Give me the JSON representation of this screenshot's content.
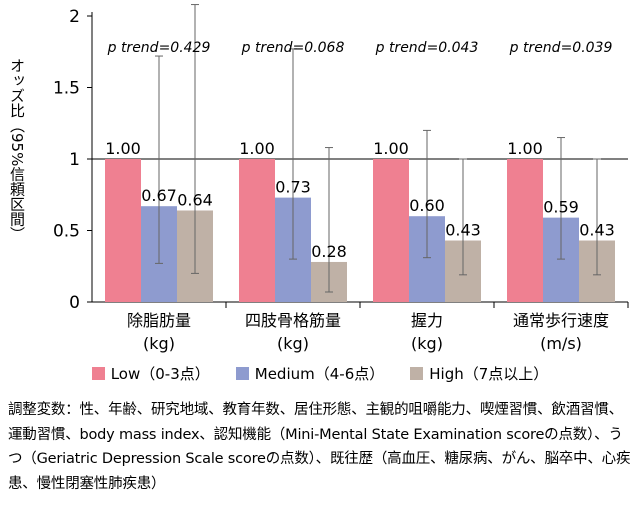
{
  "chart_data": {
    "type": "bar",
    "ylabel": "オッズ比（95%信頼区間）",
    "ylim": [
      0,
      2
    ],
    "yticks": [
      "0",
      "0.5",
      "1",
      "1.5",
      "2"
    ],
    "categories": [
      {
        "name": "除脂肪量",
        "unit": "(kg)"
      },
      {
        "name": "四肢骨格筋量",
        "unit": "(kg)"
      },
      {
        "name": "握力",
        "unit": "(kg)"
      },
      {
        "name": "通常歩行速度",
        "unit": "(m/s)"
      }
    ],
    "trend_labels": [
      "p trend=0.429",
      "p trend=0.068",
      "p trend=0.043",
      "p trend=0.039"
    ],
    "series": [
      {
        "name": "Low（0-3点）",
        "color": "#ef8091",
        "values": [
          1.0,
          1.0,
          1.0,
          1.0
        ],
        "labels": [
          "1.00",
          "1.00",
          "1.00",
          "1.00"
        ],
        "ci": [
          null,
          null,
          null,
          null
        ]
      },
      {
        "name": "Medium（4-6点）",
        "color": "#8e9bcf",
        "values": [
          0.67,
          0.73,
          0.6,
          0.59
        ],
        "labels": [
          "0.67",
          "0.73",
          "0.60",
          "0.59"
        ],
        "ci": [
          [
            0.27,
            1.72
          ],
          [
            0.3,
            1.77
          ],
          [
            0.31,
            1.2
          ],
          [
            0.3,
            1.15
          ]
        ]
      },
      {
        "name": "High（7点以上）",
        "color": "#bfb1a6",
        "values": [
          0.64,
          0.28,
          0.43,
          0.43
        ],
        "labels": [
          "0.64",
          "0.28",
          "0.43",
          "0.43"
        ],
        "ci": [
          [
            0.2,
            2.08
          ],
          [
            0.07,
            1.08
          ],
          [
            0.19,
            1.0
          ],
          [
            0.19,
            1.0
          ]
        ]
      }
    ],
    "reference_line": 1,
    "grid": false
  },
  "footnote": "調整変数：性、年齢、研究地域、教育年数、居住形態、主観的咀嚼能力、喫煙習慣、飲酒習慣、運動習慣、body mass index、認知機能（Mini-Mental State Examination scoreの点数）、うつ（Geriatric Depression Scale scoreの点数）、既往歴（高血圧、糖尿病、がん、脳卒中、心疾患、慢性閉塞性肺疾患）"
}
